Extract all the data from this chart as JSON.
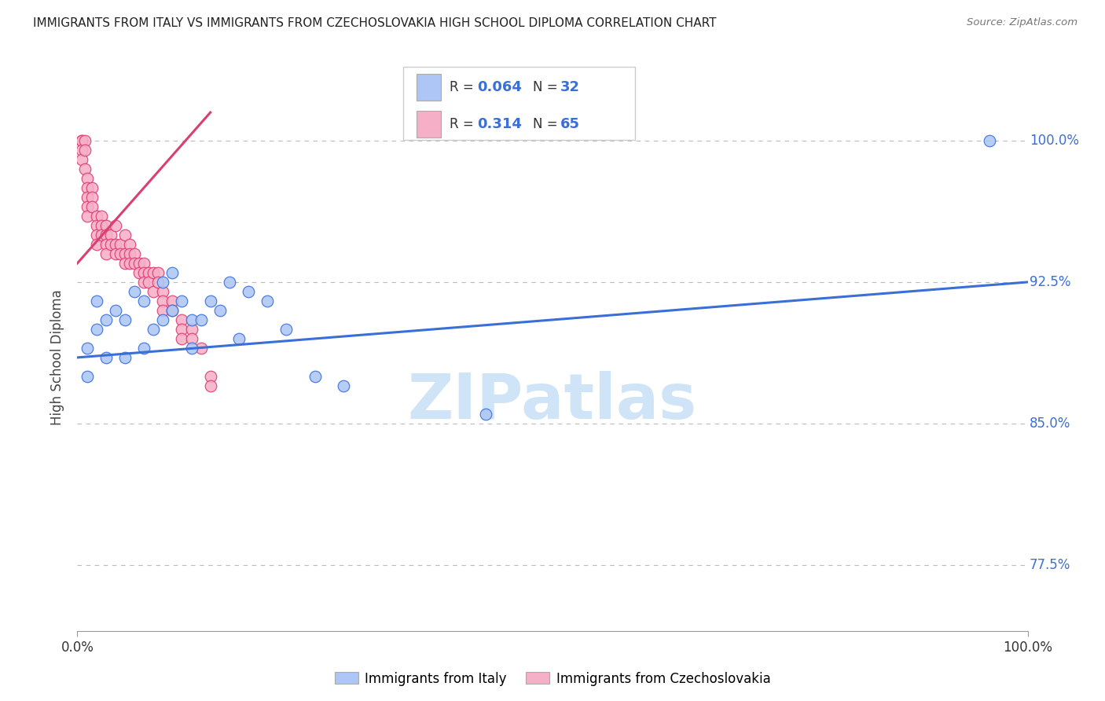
{
  "title": "IMMIGRANTS FROM ITALY VS IMMIGRANTS FROM CZECHOSLOVAKIA HIGH SCHOOL DIPLOMA CORRELATION CHART",
  "source": "Source: ZipAtlas.com",
  "ylabel": "High School Diploma",
  "legend_italy_r": "0.064",
  "legend_italy_n": "32",
  "legend_czech_r": "0.314",
  "legend_czech_n": "65",
  "legend_label_italy": "Immigrants from Italy",
  "legend_label_czech": "Immigrants from Czechoslovakia",
  "italy_color": "#aec6f5",
  "czech_color": "#f5b0c8",
  "italy_line_color": "#3a6fd8",
  "czech_line_color": "#d84070",
  "watermark_text": "ZIPatlas",
  "watermark_color": "#d0e4f7",
  "ytick_positions": [
    77.5,
    85.0,
    92.5,
    100.0
  ],
  "ytick_labels": [
    "77.5%",
    "85.0%",
    "92.5%",
    "100.0%"
  ],
  "xlim": [
    0.0,
    1.0
  ],
  "ylim": [
    74.0,
    103.0
  ],
  "italy_x": [
    0.01,
    0.01,
    0.02,
    0.02,
    0.03,
    0.03,
    0.04,
    0.05,
    0.05,
    0.06,
    0.07,
    0.07,
    0.08,
    0.09,
    0.09,
    0.1,
    0.1,
    0.11,
    0.12,
    0.12,
    0.13,
    0.14,
    0.15,
    0.16,
    0.17,
    0.18,
    0.2,
    0.22,
    0.25,
    0.28,
    0.43,
    0.96
  ],
  "italy_y": [
    89.0,
    87.5,
    91.5,
    90.0,
    90.5,
    88.5,
    91.0,
    90.5,
    88.5,
    92.0,
    91.5,
    89.0,
    90.0,
    92.5,
    90.5,
    93.0,
    91.0,
    91.5,
    90.5,
    89.0,
    90.5,
    91.5,
    91.0,
    92.5,
    89.5,
    92.0,
    91.5,
    90.0,
    87.5,
    87.0,
    85.5,
    100.0
  ],
  "czech_x": [
    0.005,
    0.005,
    0.005,
    0.005,
    0.008,
    0.008,
    0.008,
    0.01,
    0.01,
    0.01,
    0.01,
    0.01,
    0.015,
    0.015,
    0.015,
    0.02,
    0.02,
    0.02,
    0.02,
    0.025,
    0.025,
    0.025,
    0.03,
    0.03,
    0.03,
    0.03,
    0.035,
    0.035,
    0.04,
    0.04,
    0.04,
    0.045,
    0.045,
    0.05,
    0.05,
    0.05,
    0.055,
    0.055,
    0.055,
    0.06,
    0.06,
    0.065,
    0.065,
    0.07,
    0.07,
    0.07,
    0.075,
    0.075,
    0.08,
    0.08,
    0.085,
    0.085,
    0.09,
    0.09,
    0.09,
    0.1,
    0.1,
    0.11,
    0.11,
    0.11,
    0.12,
    0.12,
    0.13,
    0.14,
    0.14
  ],
  "czech_y": [
    100.0,
    100.0,
    99.5,
    99.0,
    100.0,
    99.5,
    98.5,
    98.0,
    97.5,
    97.0,
    96.5,
    96.0,
    97.5,
    97.0,
    96.5,
    96.0,
    95.5,
    95.0,
    94.5,
    96.0,
    95.5,
    95.0,
    95.5,
    95.0,
    94.5,
    94.0,
    95.0,
    94.5,
    95.5,
    94.5,
    94.0,
    94.5,
    94.0,
    95.0,
    94.0,
    93.5,
    94.5,
    94.0,
    93.5,
    94.0,
    93.5,
    93.5,
    93.0,
    93.5,
    93.0,
    92.5,
    93.0,
    92.5,
    93.0,
    92.0,
    93.0,
    92.5,
    92.0,
    91.5,
    91.0,
    91.5,
    91.0,
    90.5,
    90.0,
    89.5,
    90.0,
    89.5,
    89.0,
    87.5,
    87.0
  ],
  "italy_trend_x": [
    0.0,
    1.0
  ],
  "italy_trend_y": [
    88.5,
    92.5
  ],
  "czech_trend_x": [
    0.0,
    0.14
  ],
  "czech_trend_y": [
    93.5,
    101.5
  ]
}
